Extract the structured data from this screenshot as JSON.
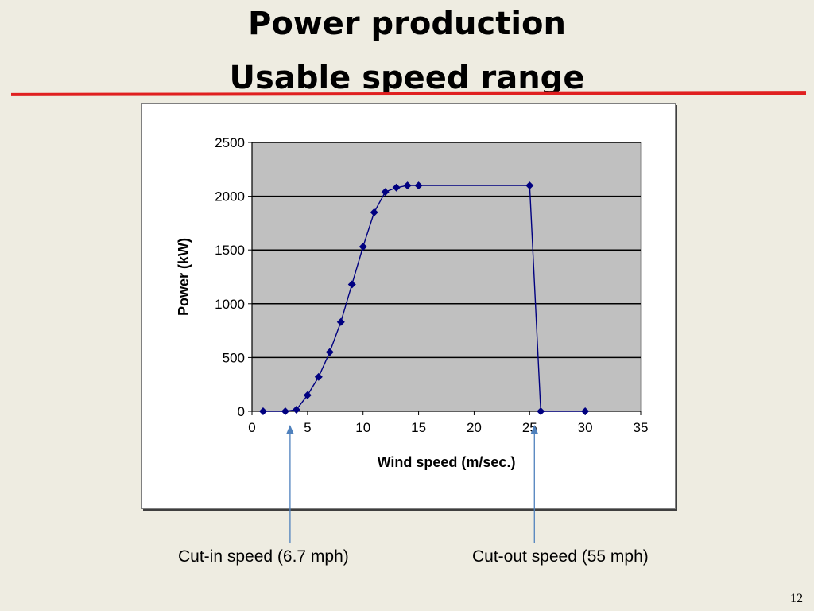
{
  "slide": {
    "title_line1": "Power production",
    "title_line2": "Usable speed range",
    "page_number": "12",
    "accent_color": "#e02020",
    "callouts": {
      "cut_in": "Cut-in speed (6.7 mph)",
      "cut_out": "Cut-out speed (55 mph)",
      "arrow_color": "#4f81bd"
    }
  },
  "chart_data": {
    "type": "line",
    "title": "",
    "xlabel": "Wind speed (m/sec.)",
    "ylabel": "Power (kW)",
    "xlim": [
      0,
      35
    ],
    "ylim": [
      0,
      2500
    ],
    "xticks": [
      0,
      5,
      10,
      15,
      20,
      25,
      30,
      35
    ],
    "yticks": [
      0,
      500,
      1000,
      1500,
      2000,
      2500
    ],
    "grid": "horizontal",
    "legend": "none",
    "plot_background": "#c0c0c0",
    "series_color": "#000080",
    "series": [
      {
        "x": [
          1,
          3,
          4,
          5,
          6,
          7,
          8,
          9,
          10,
          11,
          12,
          13,
          14,
          15,
          25,
          26,
          30
        ],
        "y": [
          0,
          0,
          15,
          150,
          320,
          550,
          830,
          1180,
          1530,
          1850,
          2040,
          2080,
          2100,
          2100,
          2100,
          0,
          0
        ]
      }
    ],
    "annotations": [
      {
        "text": "Cut-in speed (6.7 mph)",
        "x": 3.5
      },
      {
        "text": "Cut-out speed (55 mph)",
        "x": 25.5
      }
    ]
  }
}
